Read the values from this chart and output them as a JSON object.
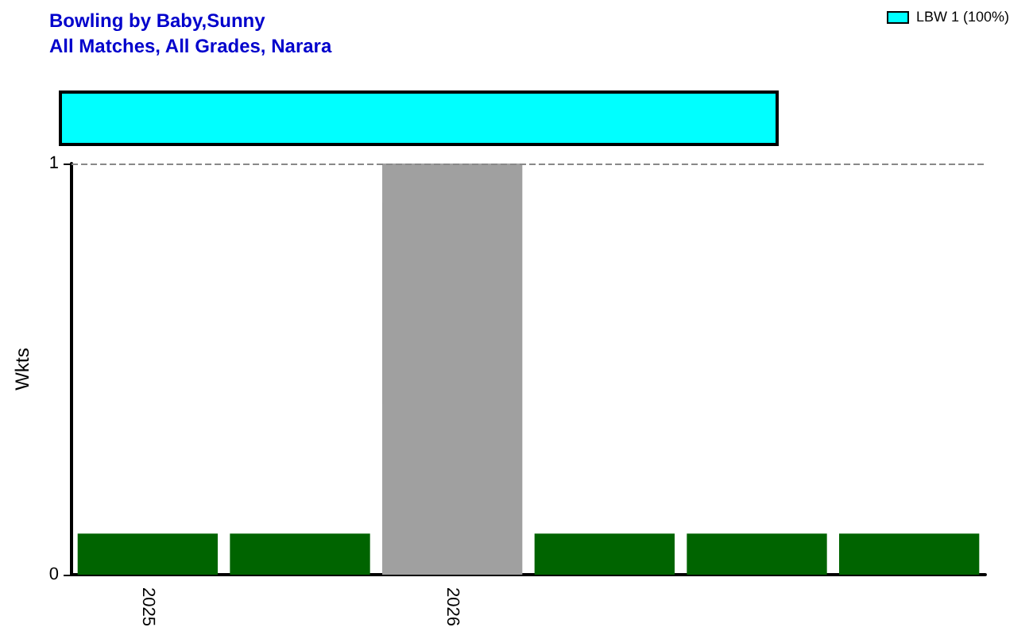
{
  "chart_data": {
    "type": "bar",
    "title": "Bowling by Baby,Sunny",
    "subtitle": "All Matches, All Grades, Narara",
    "ylabel": "Wkts",
    "categories": [
      "2025",
      null,
      "2026",
      null,
      null,
      null
    ],
    "values": [
      0.1,
      0.1,
      1,
      0.1,
      0.1,
      0.1
    ],
    "colors": [
      "#006400",
      "#006400",
      "#a0a0a0",
      "#006400",
      "#006400",
      "#006400"
    ],
    "ylim": [
      0,
      1
    ],
    "yticks": [
      0,
      1
    ],
    "ref_lines": [
      {
        "axis": "y",
        "value": 1,
        "color": "#888888",
        "line_style": "dashed"
      }
    ],
    "annotations": [
      "LBW 1 (100%)"
    ]
  }
}
